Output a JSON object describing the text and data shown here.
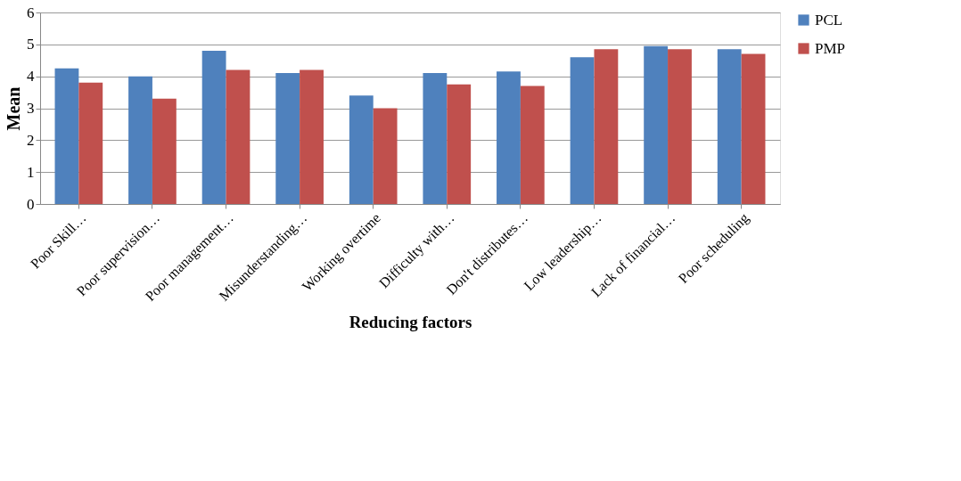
{
  "chart_data": {
    "type": "bar",
    "xlabel": "Reducing factors",
    "ylabel": "Mean",
    "categories": [
      "Poor Skill…",
      "Poor supervision…",
      "Poor management…",
      "Misunderstanding…",
      "Working overtime",
      "Difficulty with…",
      "Don't distributes…",
      "Low leadership…",
      "Lack of financial…",
      "Poor scheduling"
    ],
    "series": [
      {
        "name": "PCL",
        "color": "#4f81bd",
        "values": [
          4.25,
          4.0,
          4.8,
          4.1,
          3.4,
          4.1,
          4.15,
          4.6,
          4.95,
          4.85
        ]
      },
      {
        "name": "PMP",
        "color": "#c0504d",
        "values": [
          3.8,
          3.3,
          4.2,
          4.2,
          3.0,
          3.75,
          3.7,
          4.85,
          4.85,
          4.7
        ]
      }
    ],
    "ylim": [
      0,
      6
    ],
    "yticks": [
      0,
      1,
      2,
      3,
      4,
      5,
      6
    ],
    "grid": "y",
    "legend": "right"
  }
}
